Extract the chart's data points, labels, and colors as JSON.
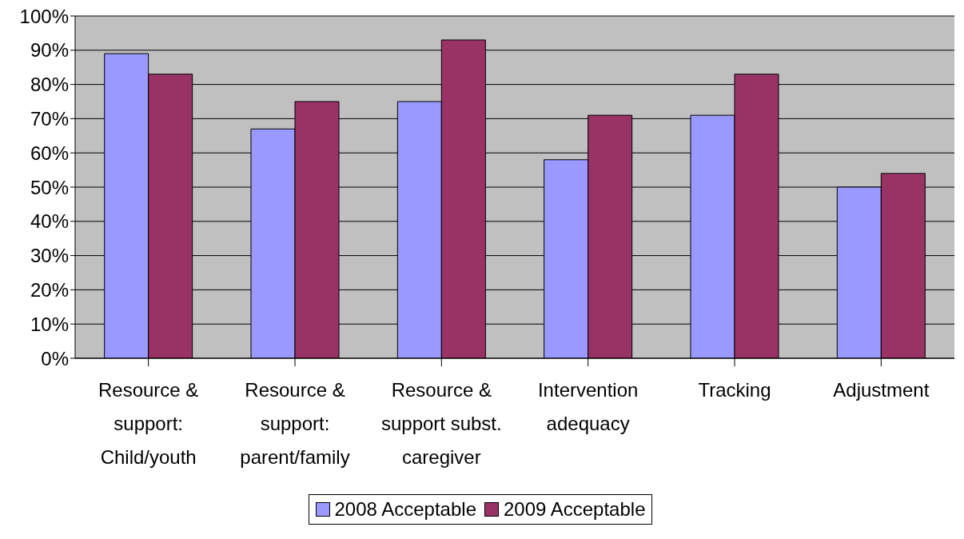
{
  "chart_data": {
    "type": "bar",
    "categories": [
      "Resource & support: Child/youth",
      "Resource & support: parent/family",
      "Resource & support subst. caregiver",
      "Intervention adequacy",
      "Tracking",
      "Adjustment"
    ],
    "series": [
      {
        "name": "2008 Acceptable",
        "color": "#9999ff",
        "values": [
          89,
          67,
          75,
          58,
          71,
          50
        ]
      },
      {
        "name": "2009 Acceptable",
        "color": "#993366",
        "values": [
          83,
          75,
          93,
          71,
          83,
          54
        ]
      }
    ],
    "ylim": [
      0,
      100
    ],
    "yticks": [
      {
        "value": 0,
        "label": "0%"
      },
      {
        "value": 10,
        "label": "10%"
      },
      {
        "value": 20,
        "label": "20%"
      },
      {
        "value": 30,
        "label": "30%"
      },
      {
        "value": 40,
        "label": "40%"
      },
      {
        "value": 50,
        "label": "50%"
      },
      {
        "value": 60,
        "label": "60%"
      },
      {
        "value": 70,
        "label": "70%"
      },
      {
        "value": 80,
        "label": "80%"
      },
      {
        "value": 90,
        "label": "90%"
      },
      {
        "value": 100,
        "label": "100%"
      }
    ],
    "grid": "y",
    "legend": "bottom"
  }
}
